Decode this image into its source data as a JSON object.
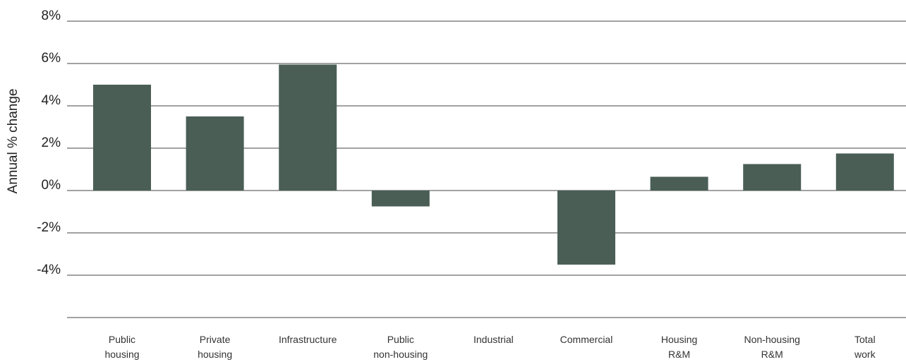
{
  "chart_data": {
    "type": "bar",
    "categories": [
      [
        "Public",
        "housing"
      ],
      [
        "Private",
        "housing"
      ],
      [
        "Infrastructure"
      ],
      [
        "Public",
        "non-housing"
      ],
      [
        "Industrial"
      ],
      [
        "Commercial"
      ],
      [
        "Housing",
        "R&M"
      ],
      [
        "Non-housing",
        "R&M"
      ],
      [
        "Total",
        "work"
      ]
    ],
    "values": [
      5.0,
      3.5,
      5.95,
      -0.75,
      0.0,
      -3.5,
      0.65,
      1.25,
      1.75
    ],
    "title": "",
    "xlabel": "",
    "ylabel": "Annual % change",
    "ylim": [
      -6,
      8
    ],
    "yticks": [
      8,
      6,
      4,
      2,
      0,
      -2,
      -4
    ],
    "ytick_labels": [
      "8%",
      "6%",
      "4%",
      "2%",
      "0%",
      "-2%",
      "-4%"
    ],
    "grid": true,
    "legend": "none",
    "colors": {
      "bar": "#4a5e56",
      "grid": "#444444",
      "text": "#222222"
    }
  }
}
